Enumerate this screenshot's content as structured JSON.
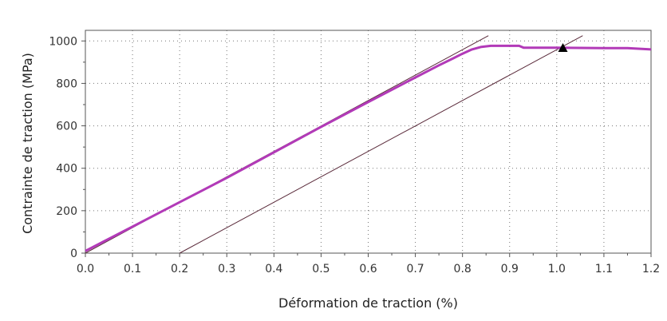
{
  "chart_data": {
    "type": "line",
    "title": "",
    "xlabel": "Déformation de traction (%)",
    "ylabel": "Contrainte de traction (MPa)",
    "xlim": [
      0.0,
      1.2
    ],
    "ylim": [
      0,
      1050
    ],
    "x_ticks": [
      "0.0",
      "0.1",
      "0.2",
      "0.3",
      "0.4",
      "0.5",
      "0.6",
      "0.7",
      "0.8",
      "0.9",
      "1.0",
      "1.1",
      "1.2"
    ],
    "y_ticks": [
      "0",
      "200",
      "400",
      "600",
      "800",
      "1000"
    ],
    "grid": true,
    "colors": {
      "curve": "#b23ab8",
      "offset_line": "#5a2a3a",
      "marker": "#000000",
      "grid": "#777777",
      "axis": "#555555"
    },
    "series": [
      {
        "kind": "stress-strain curve",
        "x": [
          0.0,
          0.1,
          0.2,
          0.3,
          0.4,
          0.5,
          0.6,
          0.7,
          0.75,
          0.78,
          0.8,
          0.82,
          0.84,
          0.86,
          0.88,
          0.9,
          0.92,
          0.93,
          1.0,
          1.1,
          1.15,
          1.2
        ],
        "y": [
          10,
          125,
          240,
          355,
          475,
          595,
          712,
          828,
          885,
          918,
          940,
          960,
          972,
          977,
          977,
          977,
          977,
          968,
          968,
          966,
          966,
          960
        ]
      },
      {
        "kind": "elastic modulus line",
        "x": [
          0.0,
          0.855
        ],
        "y": [
          0,
          1025
        ]
      },
      {
        "kind": "0.2% offset line",
        "x": [
          0.2,
          1.055
        ],
        "y": [
          0,
          1025
        ]
      }
    ],
    "marker": {
      "symbol": "triangle",
      "x": 1.013,
      "y": 967
    }
  }
}
